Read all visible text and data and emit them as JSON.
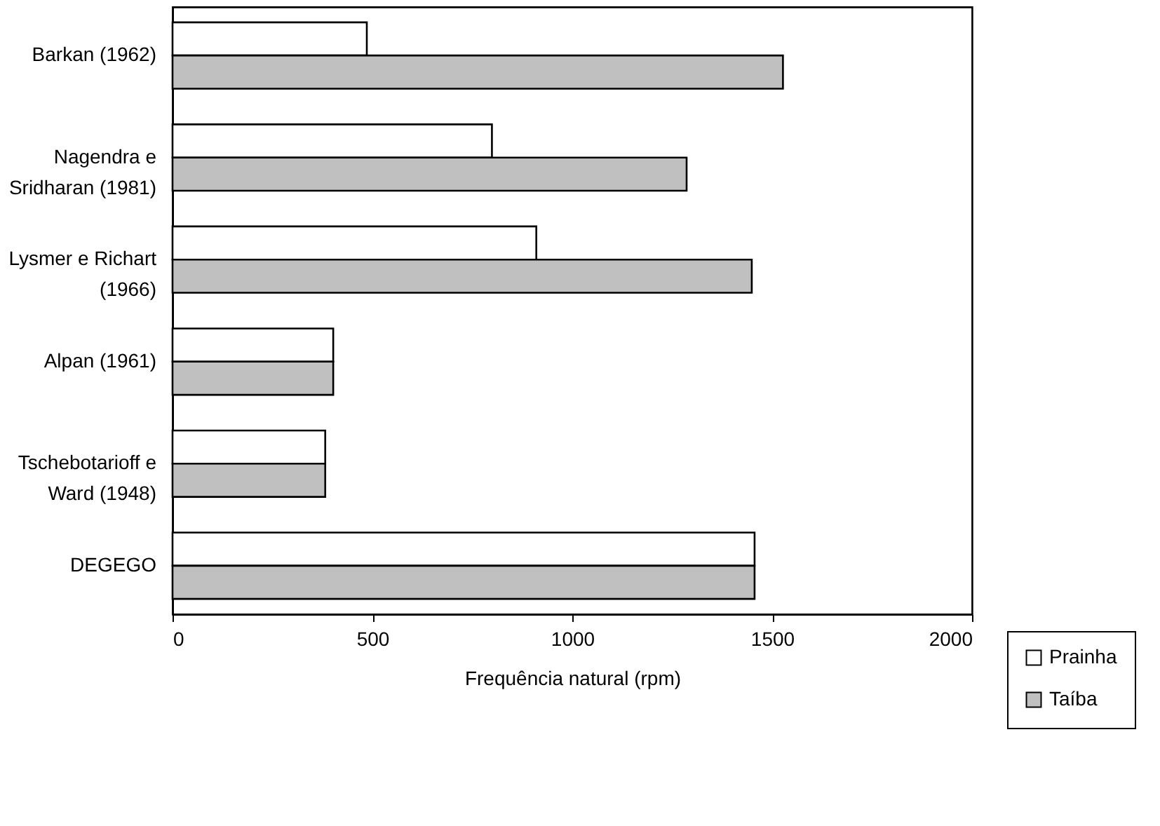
{
  "chart_data": {
    "type": "bar",
    "orientation": "horizontal",
    "xlabel": "Frequência natural (rpm)",
    "categories": [
      "Barkan (1962)",
      "Nagendra e Sridharan (1981)",
      "Lysmer e Richart (1966)",
      "Alpan (1961)",
      "Tschebotarioff e Ward (1948)",
      "DEGEGO"
    ],
    "series": [
      {
        "name": "Prainha",
        "color": "#ffffff",
        "values": [
          486,
          799,
          910,
          402,
          382,
          1456
        ]
      },
      {
        "name": "Taíba",
        "color": "#c0c0c0",
        "values": [
          1527,
          1286,
          1449,
          402,
          382,
          1456
        ]
      }
    ],
    "xlim": [
      0,
      2000
    ],
    "xticks": [
      0,
      500,
      1000,
      1500,
      2000
    ],
    "grid": false,
    "legend": "bottom right"
  }
}
